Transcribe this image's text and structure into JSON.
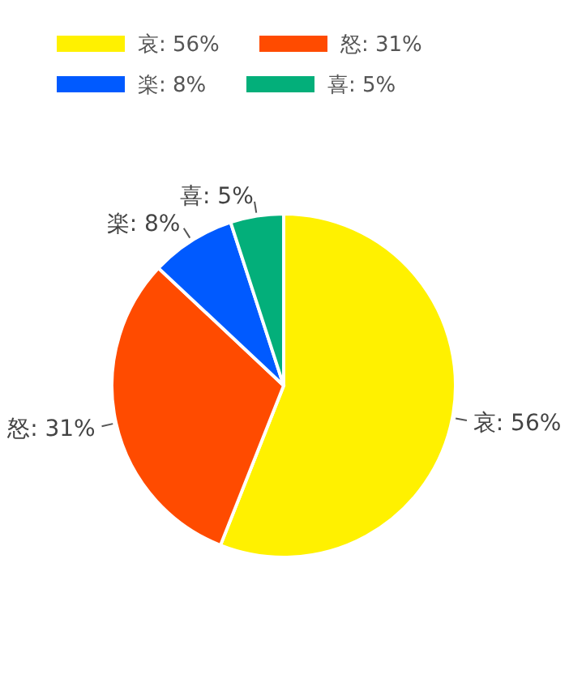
{
  "chart_data": {
    "type": "pie",
    "categories": [
      "哀: 56%",
      "怒: 31%",
      "楽: 8%",
      "喜: 5%"
    ],
    "values": [
      56,
      31,
      8,
      5
    ],
    "colors": [
      "#fff100",
      "#ff4b00",
      "#005aff",
      "#03af7a"
    ],
    "legend": "top left"
  }
}
